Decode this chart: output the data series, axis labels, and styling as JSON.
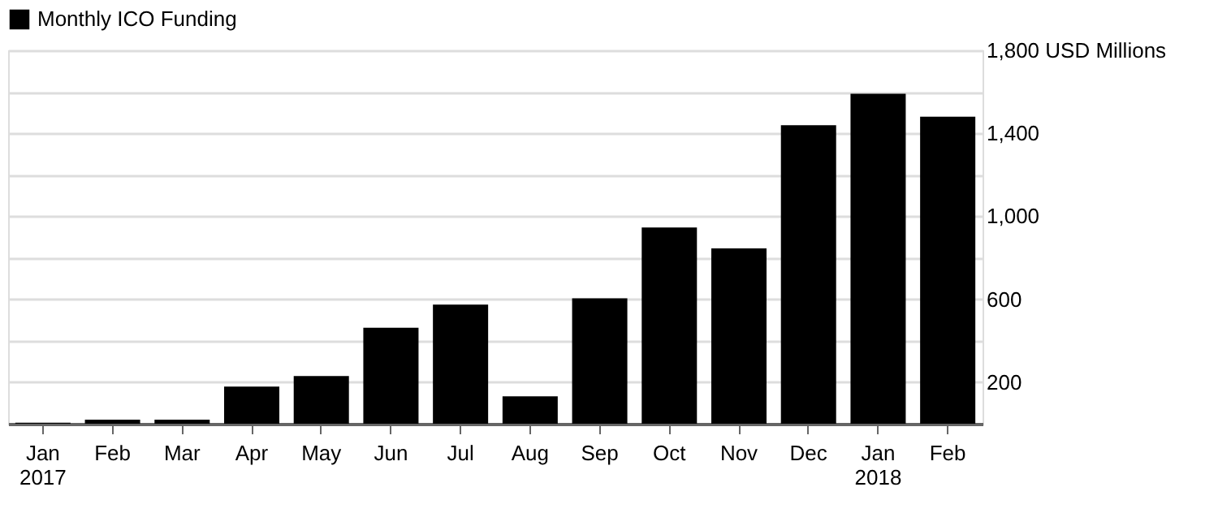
{
  "chart_data": {
    "type": "bar",
    "categories": [
      "Jan\n2017",
      "Feb",
      "Mar",
      "Apr",
      "May",
      "Jun",
      "Jul",
      "Aug",
      "Sep",
      "Oct",
      "Nov",
      "Dec",
      "Jan\n2018",
      "Feb"
    ],
    "series": [
      {
        "name": "Monthly ICO Funding",
        "color": "#000000",
        "values": [
          5,
          20,
          20,
          179,
          230,
          463,
          574,
          132,
          605,
          946,
          845,
          1439,
          1591,
          1480
        ]
      }
    ],
    "ylim": [
      0,
      1800
    ],
    "yticks": [
      {
        "value": 0,
        "label": null
      },
      200,
      {
        "value": 400,
        "label": null
      },
      600,
      {
        "value": 800,
        "label": null
      },
      {
        "value": 1000,
        "label": "1,000"
      },
      {
        "value": 1200,
        "label": null
      },
      {
        "value": 1400,
        "label": "1,400"
      },
      {
        "value": 1600,
        "label": null
      },
      {
        "value": 1800,
        "label": "1,800 USD Millions"
      }
    ],
    "grid": "y",
    "legend": "top left"
  }
}
